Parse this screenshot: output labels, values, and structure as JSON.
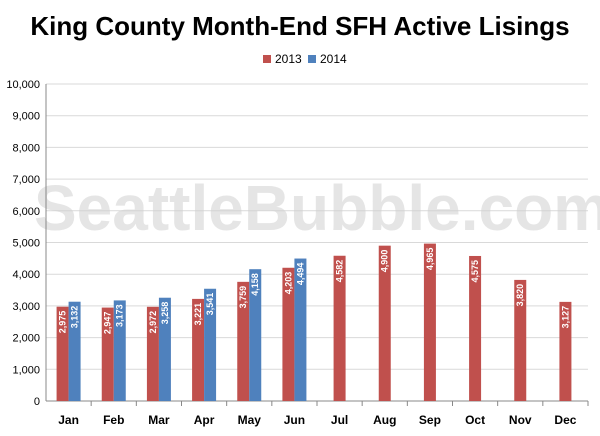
{
  "chart_data": {
    "type": "bar",
    "title": "King County Month-End SFH Active Lisings",
    "watermark": "SeattleBubble.com",
    "categories": [
      "Jan",
      "Feb",
      "Mar",
      "Apr",
      "May",
      "Jun",
      "Jul",
      "Aug",
      "Sep",
      "Oct",
      "Nov",
      "Dec"
    ],
    "series": [
      {
        "name": "2013",
        "color": "#c0504d",
        "values": [
          2975,
          2947,
          2972,
          3221,
          3759,
          4203,
          4582,
          4900,
          4965,
          4575,
          3820,
          3127
        ],
        "labels": [
          "2,975",
          "2,947",
          "2,972",
          "3,221",
          "3,759",
          "4,203",
          "4,582",
          "4,900",
          "4,965",
          "4,575",
          "3,820",
          "3,127"
        ]
      },
      {
        "name": "2014",
        "color": "#4f81bd",
        "values": [
          3132,
          3173,
          3258,
          3541,
          4158,
          4494,
          null,
          null,
          null,
          null,
          null,
          null
        ],
        "labels": [
          "3,132",
          "3,173",
          "3,258",
          "3,541",
          "4,158",
          "4,494",
          null,
          null,
          null,
          null,
          null,
          null
        ]
      }
    ],
    "ylim": [
      0,
      10000
    ],
    "yticks": [
      0,
      1000,
      2000,
      3000,
      4000,
      5000,
      6000,
      7000,
      8000,
      9000,
      10000
    ],
    "ytick_labels": [
      "0",
      "1,000",
      "2,000",
      "3,000",
      "4,000",
      "5,000",
      "6,000",
      "7,000",
      "8,000",
      "9,000",
      "10,000"
    ],
    "grid": true,
    "legend_position": "top-center",
    "gridline_color": "#d9d9d9",
    "axis_color": "#888888"
  }
}
